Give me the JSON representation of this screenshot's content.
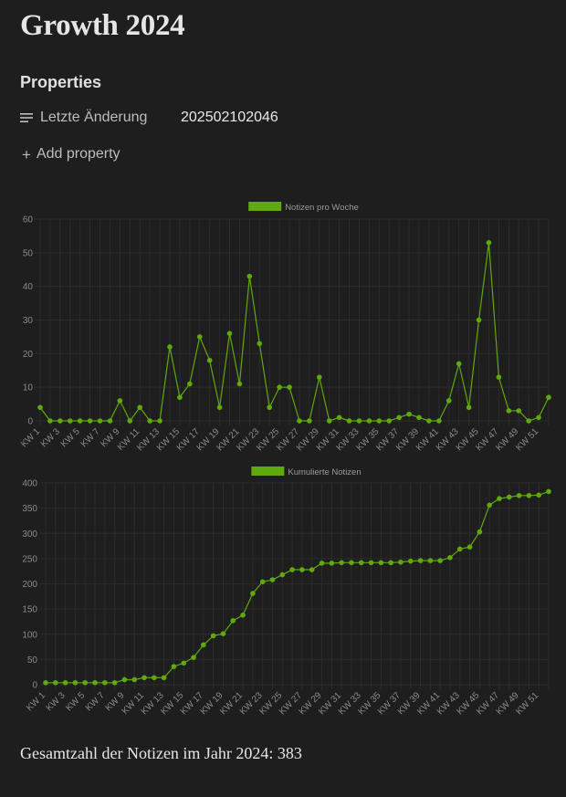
{
  "page": {
    "title": "Growth 2024",
    "properties_heading": "Properties",
    "property": {
      "icon": "text-lines-icon",
      "key": "Letzte Änderung",
      "value": "202502102046"
    },
    "add_property": {
      "icon": "plus-icon",
      "label": "Add property"
    },
    "summary_text": "Gesamtzahl der Notizen im Jahr 2024: 383"
  },
  "colors": {
    "background": "#1e1e1e",
    "series": "#5fa80d",
    "grid": "#2c2c2c",
    "tick_text": "#8a8a8a"
  },
  "chart_data": [
    {
      "type": "line",
      "legend_position": "top-center",
      "grid": true,
      "ylim": [
        0,
        60
      ],
      "yticks": [
        0,
        10,
        20,
        30,
        40,
        50,
        60
      ],
      "x_tick_labels": [
        "KW 1",
        "KW 3",
        "KW 5",
        "KW 7",
        "KW 9",
        "KW 11",
        "KW 13",
        "KW 15",
        "KW 17",
        "KW 19",
        "KW 21",
        "KW 23",
        "KW 25",
        "KW 27",
        "KW 29",
        "KW 31",
        "KW 33",
        "KW 35",
        "KW 37",
        "KW 39",
        "KW 41",
        "KW 43",
        "KW 45",
        "KW 47",
        "KW 49",
        "KW 51"
      ],
      "categories": [
        "KW 1",
        "KW 2",
        "KW 3",
        "KW 4",
        "KW 5",
        "KW 6",
        "KW 7",
        "KW 8",
        "KW 9",
        "KW 10",
        "KW 11",
        "KW 12",
        "KW 13",
        "KW 14",
        "KW 15",
        "KW 16",
        "KW 17",
        "KW 18",
        "KW 19",
        "KW 20",
        "KW 21",
        "KW 22",
        "KW 23",
        "KW 24",
        "KW 25",
        "KW 26",
        "KW 27",
        "KW 28",
        "KW 29",
        "KW 30",
        "KW 31",
        "KW 32",
        "KW 33",
        "KW 34",
        "KW 35",
        "KW 36",
        "KW 37",
        "KW 38",
        "KW 39",
        "KW 40",
        "KW 41",
        "KW 42",
        "KW 43",
        "KW 44",
        "KW 45",
        "KW 46",
        "KW 47",
        "KW 48",
        "KW 49",
        "KW 50",
        "KW 51",
        "KW 52"
      ],
      "series": [
        {
          "name": "Notizen pro Woche",
          "values": [
            4,
            0,
            0,
            0,
            0,
            0,
            0,
            0,
            6,
            0,
            4,
            0,
            0,
            22,
            7,
            11,
            25,
            18,
            4,
            26,
            11,
            43,
            23,
            4,
            10,
            10,
            0,
            0,
            13,
            0,
            1,
            0,
            0,
            0,
            0,
            0,
            1,
            2,
            1,
            0,
            0,
            6,
            17,
            4,
            30,
            53,
            13,
            3,
            3,
            0,
            1,
            7
          ]
        }
      ]
    },
    {
      "type": "line",
      "legend_position": "top-center",
      "grid": true,
      "ylim": [
        0,
        400
      ],
      "yticks": [
        0,
        50,
        100,
        150,
        200,
        250,
        300,
        350,
        400
      ],
      "x_tick_labels": [
        "KW 1",
        "KW 3",
        "KW 5",
        "KW 7",
        "KW 9",
        "KW 11",
        "KW 13",
        "KW 15",
        "KW 17",
        "KW 19",
        "KW 21",
        "KW 23",
        "KW 25",
        "KW 27",
        "KW 29",
        "KW 31",
        "KW 33",
        "KW 35",
        "KW 37",
        "KW 39",
        "KW 41",
        "KW 43",
        "KW 45",
        "KW 47",
        "KW 49",
        "KW 51"
      ],
      "categories": [
        "KW 1",
        "KW 2",
        "KW 3",
        "KW 4",
        "KW 5",
        "KW 6",
        "KW 7",
        "KW 8",
        "KW 9",
        "KW 10",
        "KW 11",
        "KW 12",
        "KW 13",
        "KW 14",
        "KW 15",
        "KW 16",
        "KW 17",
        "KW 18",
        "KW 19",
        "KW 20",
        "KW 21",
        "KW 22",
        "KW 23",
        "KW 24",
        "KW 25",
        "KW 26",
        "KW 27",
        "KW 28",
        "KW 29",
        "KW 30",
        "KW 31",
        "KW 32",
        "KW 33",
        "KW 34",
        "KW 35",
        "KW 36",
        "KW 37",
        "KW 38",
        "KW 39",
        "KW 40",
        "KW 41",
        "KW 42",
        "KW 43",
        "KW 44",
        "KW 45",
        "KW 46",
        "KW 47",
        "KW 48",
        "KW 49",
        "KW 50",
        "KW 51",
        "KW 52"
      ],
      "series": [
        {
          "name": "Kumulierte Notizen",
          "values": [
            4,
            4,
            4,
            4,
            4,
            4,
            4,
            4,
            10,
            10,
            14,
            14,
            14,
            36,
            43,
            54,
            79,
            97,
            101,
            127,
            138,
            181,
            204,
            208,
            218,
            228,
            228,
            228,
            241,
            241,
            242,
            242,
            242,
            242,
            242,
            242,
            243,
            245,
            246,
            246,
            246,
            252,
            269,
            273,
            303,
            356,
            369,
            372,
            375,
            375,
            376,
            383
          ]
        }
      ]
    }
  ]
}
